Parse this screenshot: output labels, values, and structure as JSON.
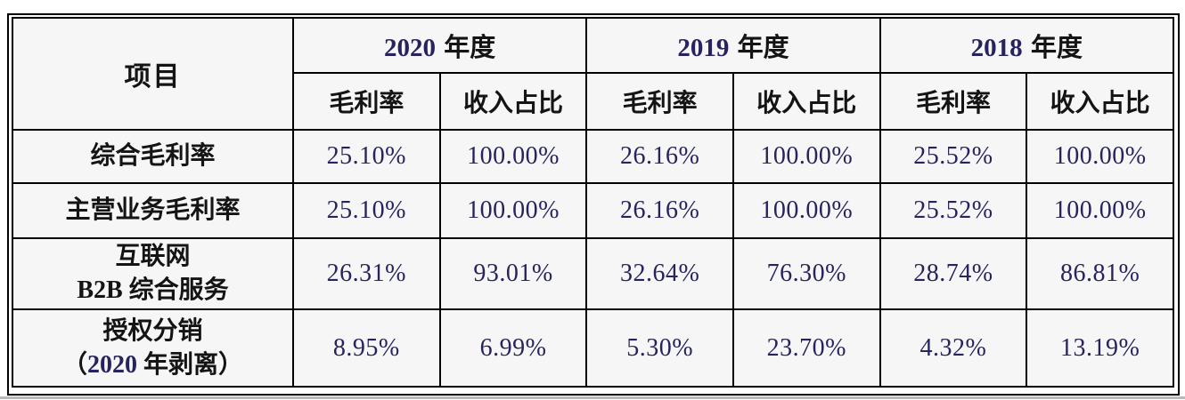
{
  "table": {
    "item_header": "项目",
    "year_groups": [
      {
        "year": "2020",
        "unit": "年度"
      },
      {
        "year": "2019",
        "unit": "年度"
      },
      {
        "year": "2018",
        "unit": "年度"
      }
    ],
    "sub_headers": [
      "毛利率",
      "收入占比"
    ],
    "rows": [
      {
        "label_lines": [
          "综合毛利率"
        ],
        "values": [
          "25.10%",
          "100.00%",
          "26.16%",
          "100.00%",
          "25.52%",
          "100.00%"
        ]
      },
      {
        "label_lines": [
          "主营业务毛利率"
        ],
        "values": [
          "25.10%",
          "100.00%",
          "26.16%",
          "100.00%",
          "25.52%",
          "100.00%"
        ]
      },
      {
        "label_lines": [
          "互联网",
          "B2B 综合服务"
        ],
        "values": [
          "26.31%",
          "93.01%",
          "32.64%",
          "76.30%",
          "28.74%",
          "86.81%"
        ]
      },
      {
        "label_lines": [
          "授权分销",
          "（2020 年剥离）"
        ],
        "values": [
          "8.95%",
          "6.99%",
          "5.30%",
          "23.70%",
          "4.32%",
          "13.19%"
        ]
      }
    ],
    "colors": {
      "border": "#000000",
      "cell_background": "#f6f6f6",
      "text": "#141414",
      "number_accent": "#26235e"
    }
  }
}
